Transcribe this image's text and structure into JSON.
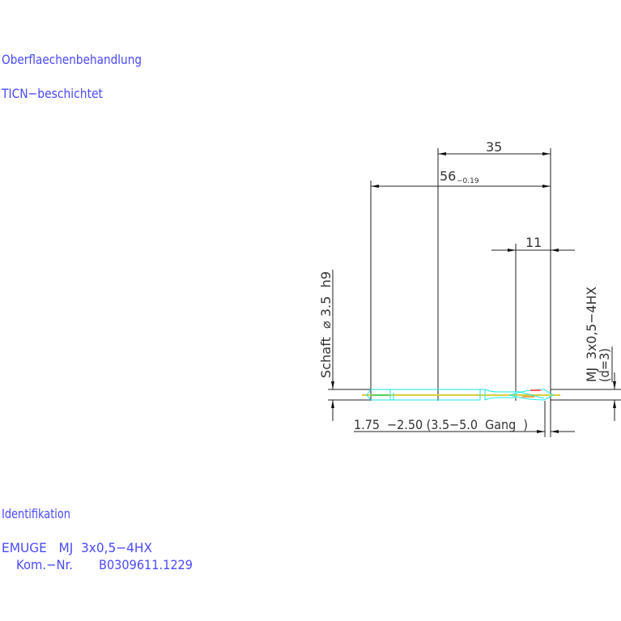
{
  "notes": {
    "surface_label": "Oberflaechenbehandlung",
    "surface_value": "TICN−beschichtet",
    "ident_label": "Identifikation",
    "ident_tool": "EMUGE   MJ  3x0,5−4HX",
    "ident_kom_label": "Kom.−Nr.",
    "ident_kom_value": "B0309611.1229"
  },
  "drawing": {
    "dim_thread_length": "35",
    "dim_total_length": "56",
    "dim_total_tolerance": "−0.19",
    "dim_chamfer": "11",
    "shank_label": "Schaft  ⌀ 3.5  h9",
    "thread_label": "MJ  3x0,5−4HX",
    "thread_d": "(d=3)",
    "chamfer_label": "1.75  −2.50 (3.5−5.0  Gang  )"
  },
  "colors": {
    "text": "#4a4aff",
    "outline": "#19e6e6",
    "centerline": "#d8d040"
  }
}
